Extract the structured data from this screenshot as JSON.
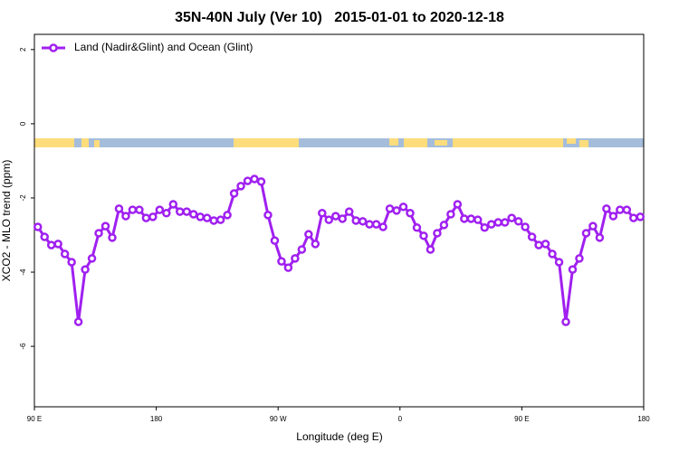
{
  "chart_data": {
    "type": "line",
    "title": "35N-40N July (Ver 10)   2015-01-01 to 2020-12-18",
    "x_label": "Longitude (deg E)",
    "y_label": "XCO2 - MLO trend (ppm)",
    "x": [
      92.5,
      97.5,
      102.5,
      107.5,
      112.5,
      117.5,
      122.5,
      127.5,
      132.5,
      137.5,
      142.5,
      147.5,
      152.5,
      157.5,
      162.5,
      167.5,
      172.5,
      177.5,
      182.5,
      187.5,
      192.5,
      197.5,
      202.5,
      207.5,
      212.5,
      217.5,
      222.5,
      227.5,
      232.5,
      237.5,
      242.5,
      247.5,
      252.5,
      257.5,
      262.5,
      267.5,
      272.5,
      277.5,
      282.5,
      287.5,
      292.5,
      297.5,
      302.5,
      307.5,
      312.5,
      317.5,
      322.5,
      327.5,
      332.5,
      337.5,
      342.5,
      347.5,
      352.5,
      357.5,
      362.5,
      367.5,
      372.5,
      377.5,
      382.5,
      387.5,
      392.5,
      397.5,
      402.5,
      407.5,
      412.5,
      417.5,
      422.5,
      427.5,
      432.5,
      437.5,
      442.5,
      447.5,
      452.5,
      457.5,
      462.5,
      467.5,
      472.5,
      477.5,
      482.5,
      487.5,
      492.5,
      497.5,
      502.5,
      507.5,
      512.5,
      517.5,
      522.5,
      527.5,
      532.5,
      537.5
    ],
    "series": [
      {
        "name": "Land (Nadir&Glint) and Ocean (Glint)",
        "color": "#a020f0",
        "values": [
          -2.78,
          -3.05,
          -3.27,
          -3.24,
          -3.51,
          -3.73,
          -5.34,
          -3.93,
          -3.63,
          -2.95,
          -2.76,
          -3.07,
          -2.29,
          -2.49,
          -2.32,
          -2.32,
          -2.54,
          -2.51,
          -2.32,
          -2.41,
          -2.17,
          -2.37,
          -2.37,
          -2.44,
          -2.51,
          -2.54,
          -2.61,
          -2.59,
          -2.46,
          -1.88,
          -1.68,
          -1.54,
          -1.49,
          -1.56,
          -2.46,
          -3.15,
          -3.71,
          -3.88,
          -3.63,
          -3.39,
          -2.98,
          -3.24,
          -2.41,
          -2.59,
          -2.49,
          -2.56,
          -2.37,
          -2.61,
          -2.63,
          -2.71,
          -2.71,
          -2.78,
          -2.29,
          -2.34,
          -2.24,
          -2.41,
          -2.8,
          -3.02,
          -3.39,
          -2.95,
          -2.73,
          -2.44,
          -2.17,
          -2.56,
          -2.56,
          -2.59,
          -2.8,
          -2.71,
          -2.66,
          -2.66,
          -2.54,
          -2.63,
          -2.78,
          -3.05,
          -3.27,
          -3.24,
          -3.51,
          -3.73,
          -5.34,
          -3.93,
          -3.63,
          -2.95,
          -2.76,
          -3.07,
          -2.29,
          -2.49,
          -2.32,
          -2.32,
          -2.54,
          -2.51
        ]
      }
    ],
    "xlim": [
      90,
      540
    ],
    "xticks": [
      {
        "value": 90,
        "label": "90 E"
      },
      180,
      {
        "value": 270,
        "label": "90 W"
      },
      {
        "value": 360,
        "label": "0"
      },
      {
        "value": 450,
        "label": "90 E"
      },
      {
        "value": 540,
        "label": "180"
      }
    ],
    "ylim": [
      -7.63,
      2.41
    ],
    "yticks": [
      2,
      0,
      -2,
      -4,
      -6
    ],
    "legend": "top-left"
  }
}
